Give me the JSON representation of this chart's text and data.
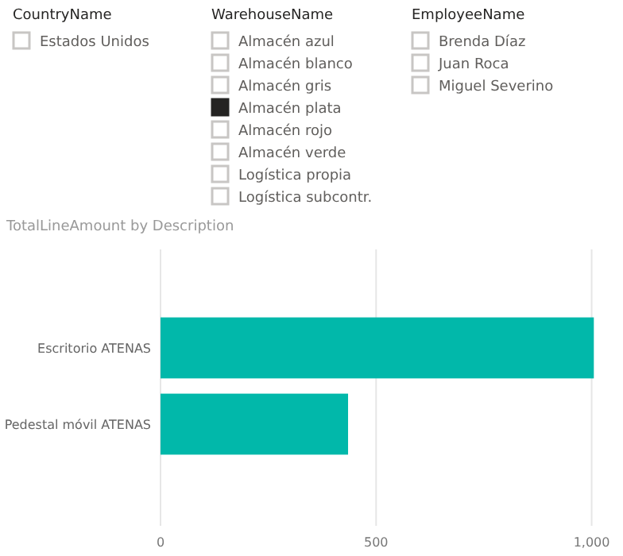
{
  "chart_data": [
    {
      "type": "other",
      "title": "CountryName",
      "annotations": [
        "Estados Unidos"
      ],
      "colors": [
        "#ffffff"
      ]
    },
    {
      "type": "other",
      "title": "WarehouseName",
      "annotations": [
        "Almacén azul",
        "Almacén blanco",
        "Almacén gris",
        "Almacén plata",
        "Almacén rojo",
        "Almacén verde",
        "Logística propia",
        "Logística subcontr."
      ],
      "colors": [
        "#ffffff",
        "#ffffff",
        "#ffffff",
        "#252423",
        "#ffffff",
        "#ffffff",
        "#ffffff",
        "#ffffff"
      ]
    },
    {
      "type": "other",
      "title": "EmployeeName",
      "annotations": [
        "Brenda Díaz",
        "Juan Roca",
        "Miguel Severino"
      ],
      "colors": [
        "#ffffff",
        "#ffffff",
        "#ffffff"
      ]
    },
    {
      "type": "bar",
      "title": "TotalLineAmount by Description",
      "orientation": "horizontal",
      "categories": [
        "Escritorio ATENAS",
        "Pedestal móvil ATENAS"
      ],
      "values": [
        1005,
        435
      ],
      "color": "#01b8aa",
      "xlim": [
        0,
        1010
      ],
      "xticks": [
        0,
        500,
        {
          "value": 1000,
          "label": "1,000"
        }
      ],
      "grid": "x"
    }
  ]
}
